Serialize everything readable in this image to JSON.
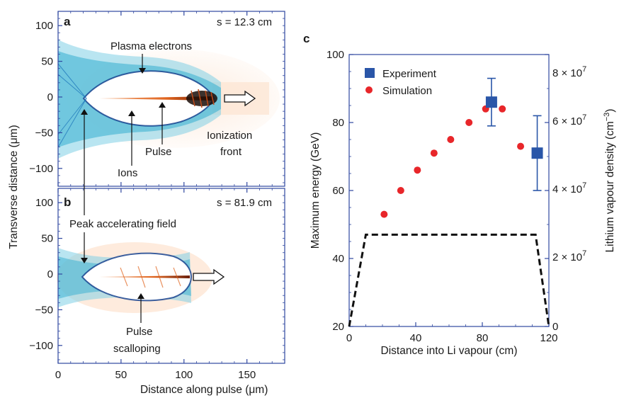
{
  "colors": {
    "experiment": "#2a56a8",
    "simulation": "#e8262a",
    "plasma": "#2aa6c9",
    "pulse": "#e0641e",
    "axis_frame": "#3048a0",
    "dashed": "#111111"
  },
  "panel_a": {
    "letter": "a",
    "s_label": "s = 12.3 cm",
    "annotations": {
      "plasma_electrons": "Plasma electrons",
      "ions": "Ions",
      "pulse": "Pulse",
      "ionization_front_1": "Ionization",
      "ionization_front_2": "front"
    }
  },
  "panel_b": {
    "letter": "b",
    "s_label": "s = 81.9 cm",
    "annotations": {
      "peak_field": "Peak accelerating field",
      "pulse_scalloping_1": "Pulse",
      "pulse_scalloping_2": "scalloping"
    }
  },
  "left_axes": {
    "xlabel": "Distance along pulse (μm)",
    "ylabel": "Transverse distance (μm)",
    "xticks": [
      "0",
      "50",
      "100",
      "150"
    ],
    "yticks_a": [
      "100",
      "50",
      "0",
      "−50",
      "−100"
    ],
    "yticks_b": [
      "100",
      "50",
      "0",
      "−50",
      "−100"
    ]
  },
  "panel_c": {
    "letter": "c",
    "legend": {
      "experiment": "Experiment",
      "simulation": "Simulation"
    },
    "right_ticks": {
      "r0": "0",
      "r2_mant": "2 × 10",
      "r4_mant": "4 × 10",
      "r6_mant": "6 × 10",
      "r8_mant": "8 × 10",
      "exp": "7"
    }
  },
  "chart_data": [
    {
      "type": "heatmap",
      "panel": "a",
      "title": "s = 12.3 cm",
      "xlabel": "Distance along pulse (μm)",
      "ylabel": "Transverse distance (μm)",
      "xlim": [
        0,
        180
      ],
      "ylim": [
        -125,
        120
      ],
      "xticks": [
        0,
        50,
        100,
        150
      ],
      "yticks": [
        100,
        50,
        0,
        -50,
        -100
      ],
      "annotations": [
        "Plasma electrons",
        "Ions",
        "Pulse",
        "Ionization front"
      ]
    },
    {
      "type": "heatmap",
      "panel": "b",
      "title": "s = 81.9 cm",
      "xlabel": "Distance along pulse (μm)",
      "ylabel": "Transverse distance (μm)",
      "xlim": [
        0,
        180
      ],
      "ylim": [
        -125,
        120
      ],
      "xticks": [
        0,
        50,
        100,
        150
      ],
      "yticks": [
        100,
        50,
        0,
        -50,
        -100
      ],
      "annotations": [
        "Peak accelerating field",
        "Pulse scalloping"
      ]
    },
    {
      "type": "scatter",
      "panel": "c",
      "xlabel": "Distance into Li vapour (cm)",
      "ylabel": "Maximum energy (GeV)",
      "y2label": "Lithium vapour density (cm⁻³)",
      "xlim": [
        0,
        120
      ],
      "ylim": [
        20,
        100
      ],
      "y2lim": [
        0,
        80000000.0
      ],
      "xticks": [
        0,
        40,
        80,
        120
      ],
      "yticks": [
        20,
        40,
        60,
        80,
        100
      ],
      "y2ticks": [
        0,
        20000000.0,
        40000000.0,
        60000000.0,
        80000000.0
      ],
      "legend": "top-left",
      "series": [
        {
          "name": "Experiment",
          "marker": "square",
          "x": [
            85.5,
            113
          ],
          "y": [
            86,
            71
          ],
          "yerr_low": [
            79,
            60
          ],
          "yerr_high": [
            93,
            82
          ]
        },
        {
          "name": "Simulation",
          "marker": "circle",
          "x": [
            21,
            31,
            41,
            51,
            61,
            72,
            82,
            92,
            103
          ],
          "y": [
            53,
            60,
            66,
            71,
            75,
            80,
            84,
            84,
            73
          ]
        },
        {
          "name": "Lithium vapour density",
          "axis": "right",
          "style": "dashed",
          "x": [
            0,
            10,
            112,
            120
          ],
          "y": [
            0,
            27000000.0,
            27000000.0,
            0
          ]
        }
      ]
    }
  ]
}
